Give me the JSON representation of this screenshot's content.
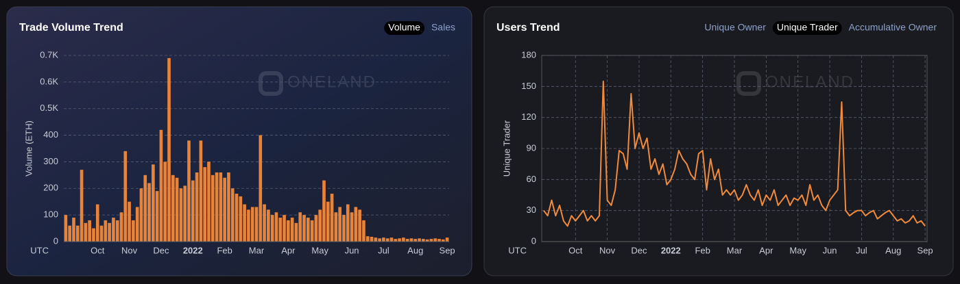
{
  "chart_data": [
    {
      "type": "bar",
      "title": "Trade Volume Trend",
      "tabs": [
        "Volume",
        "Sales"
      ],
      "active_tab": 0,
      "y_label": "Volume (ETH)",
      "x_label": "UTC",
      "watermark": "ONELAND",
      "color": "#e8843a",
      "grid": [
        "y"
      ],
      "ylim": [
        0,
        700
      ],
      "yticks": [
        0,
        100,
        200,
        300,
        400,
        {
          "value": 500,
          "label": "0.5K"
        },
        {
          "value": 600,
          "label": "0.6K"
        },
        {
          "value": 700,
          "label": "0.7K"
        }
      ],
      "categories": [
        null,
        null,
        null,
        null,
        null,
        null,
        null,
        null,
        "Oct",
        null,
        null,
        null,
        null,
        null,
        null,
        null,
        "Nov",
        null,
        null,
        null,
        null,
        null,
        null,
        null,
        "Dec",
        null,
        null,
        null,
        null,
        null,
        null,
        null,
        "2022",
        null,
        null,
        null,
        null,
        null,
        null,
        null,
        "Feb",
        null,
        null,
        null,
        null,
        null,
        null,
        null,
        "Mar",
        null,
        null,
        null,
        null,
        null,
        null,
        null,
        "Apr",
        null,
        null,
        null,
        null,
        null,
        null,
        null,
        "May",
        null,
        null,
        null,
        null,
        null,
        null,
        null,
        "Jun",
        null,
        null,
        null,
        null,
        null,
        null,
        null,
        "Jul",
        null,
        null,
        null,
        null,
        null,
        null,
        null,
        "Aug",
        null,
        null,
        null,
        null,
        null,
        null,
        null,
        "Sep"
      ],
      "values": [
        100,
        60,
        90,
        60,
        270,
        70,
        80,
        50,
        140,
        60,
        80,
        70,
        90,
        80,
        110,
        340,
        150,
        80,
        130,
        200,
        250,
        220,
        290,
        190,
        420,
        300,
        690,
        250,
        240,
        200,
        210,
        380,
        230,
        260,
        380,
        280,
        300,
        250,
        260,
        260,
        240,
        260,
        200,
        180,
        170,
        140,
        120,
        130,
        130,
        400,
        140,
        120,
        100,
        110,
        90,
        100,
        80,
        90,
        70,
        110,
        100,
        90,
        80,
        100,
        120,
        230,
        150,
        180,
        110,
        130,
        100,
        140,
        110,
        130,
        120,
        80,
        20,
        18,
        15,
        12,
        15,
        12,
        15,
        10,
        12,
        15,
        10,
        12,
        10,
        12,
        10,
        8,
        10,
        12,
        10,
        8,
        15
      ]
    },
    {
      "type": "line",
      "title": "Users Trend",
      "tabs": [
        "Unique Owner",
        "Unique Trader",
        "Accumulative Owner"
      ],
      "active_tab": 1,
      "y_label": "Unique Trader",
      "x_label": "UTC",
      "watermark": "ONELAND",
      "color": "#f08a3c",
      "grid": [
        "x",
        "y"
      ],
      "ylim": [
        0,
        180
      ],
      "yticks": [
        0,
        30,
        60,
        90,
        120,
        150,
        180
      ],
      "categories": [
        null,
        null,
        null,
        null,
        null,
        null,
        null,
        null,
        "Oct",
        null,
        null,
        null,
        null,
        null,
        null,
        null,
        "Nov",
        null,
        null,
        null,
        null,
        null,
        null,
        null,
        "Dec",
        null,
        null,
        null,
        null,
        null,
        null,
        null,
        "2022",
        null,
        null,
        null,
        null,
        null,
        null,
        null,
        "Feb",
        null,
        null,
        null,
        null,
        null,
        null,
        null,
        "Mar",
        null,
        null,
        null,
        null,
        null,
        null,
        null,
        "Apr",
        null,
        null,
        null,
        null,
        null,
        null,
        null,
        "May",
        null,
        null,
        null,
        null,
        null,
        null,
        null,
        "Jun",
        null,
        null,
        null,
        null,
        null,
        null,
        null,
        "Jul",
        null,
        null,
        null,
        null,
        null,
        null,
        null,
        "Aug",
        null,
        null,
        null,
        null,
        null,
        null,
        null,
        "Sep"
      ],
      "values": [
        30,
        25,
        40,
        25,
        35,
        20,
        15,
        25,
        20,
        25,
        30,
        20,
        25,
        20,
        25,
        155,
        40,
        35,
        50,
        88,
        85,
        70,
        143,
        90,
        105,
        90,
        100,
        70,
        80,
        65,
        75,
        55,
        60,
        70,
        88,
        80,
        75,
        65,
        60,
        85,
        88,
        50,
        80,
        60,
        70,
        45,
        50,
        45,
        50,
        40,
        45,
        55,
        45,
        40,
        50,
        35,
        45,
        40,
        50,
        35,
        40,
        45,
        35,
        42,
        40,
        45,
        35,
        55,
        40,
        45,
        35,
        30,
        40,
        45,
        50,
        135,
        30,
        25,
        28,
        30,
        30,
        25,
        28,
        30,
        22,
        25,
        28,
        30,
        25,
        20,
        22,
        18,
        20,
        25,
        18,
        20,
        15
      ]
    }
  ]
}
